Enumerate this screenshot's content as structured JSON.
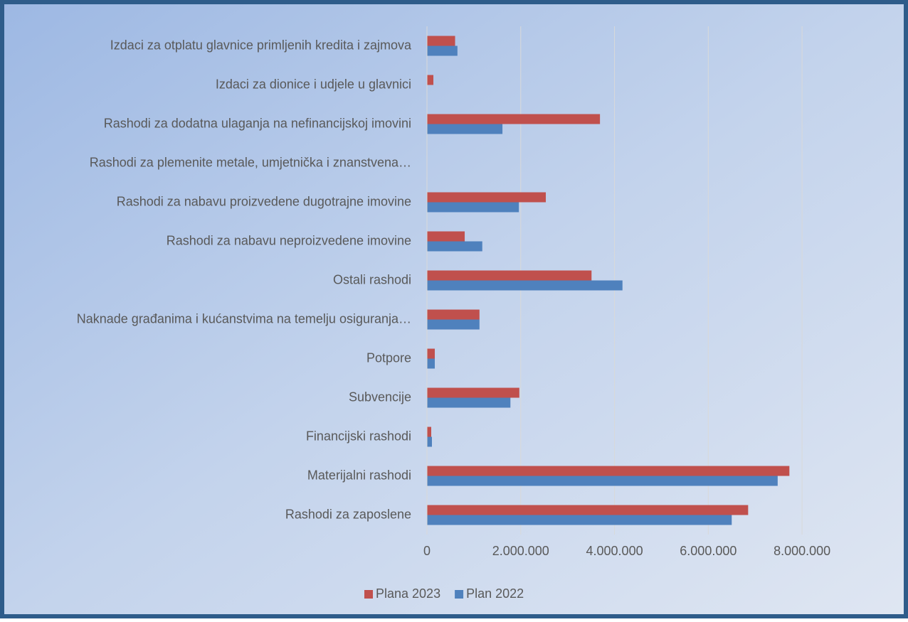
{
  "chart_data": {
    "type": "barh",
    "categories": [
      "Izdaci za otplatu glavnice primljenih kredita i zajmova",
      "Izdaci za dionice i udjele u glavnici",
      "Rashodi za dodatna ulaganja na nefinancijskoj imovini",
      "Rashodi za plemenite metale, umjetnička i znanstvena…",
      "Rashodi za nabavu proizvedene dugotrajne imovine",
      "Rashodi za nabavu neproizvedene imovine",
      "Ostali rashodi",
      "Naknade građanima i kućanstvima na temelju osiguranja…",
      "Potpore",
      "Subvencije",
      "Financijski rashodi",
      "Materijalni rashodi",
      "Rashodi za zaposlene"
    ],
    "series": [
      {
        "name": "Plana 2023",
        "color": "#c0504d",
        "values": [
          600000,
          137000,
          3690000,
          0,
          2535000,
          805000,
          3510000,
          1120000,
          167000,
          1970000,
          91000,
          7730000,
          6850000
        ]
      },
      {
        "name": "Plan 2022",
        "color": "#4f81bd",
        "values": [
          650000,
          0,
          1610000,
          0,
          1960000,
          1180000,
          4170000,
          1120000,
          167000,
          1780000,
          106000,
          7480000,
          6500000
        ]
      }
    ],
    "xlim": [
      0,
      9000000
    ],
    "xticks": [
      0,
      {
        "value": 2000000,
        "label": "2.000.000"
      },
      {
        "value": 4000000,
        "label": "4.000.000"
      },
      {
        "value": 6000000,
        "label": "6.000.000"
      },
      {
        "value": 8000000,
        "label": "8.000.000"
      }
    ],
    "grid": true,
    "legend": "bottom"
  }
}
